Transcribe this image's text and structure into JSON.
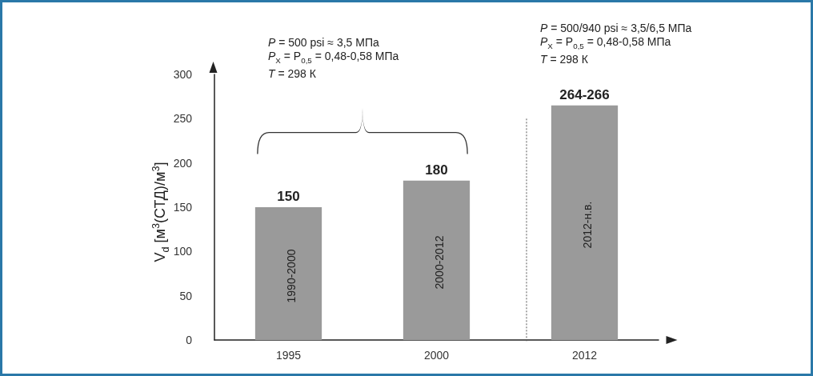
{
  "chart_data": {
    "type": "bar",
    "ylabel": "V$_{d}$ [м$^{3}$(СТД)/м$^{3}$]",
    "categories": [
      "1995",
      "2000",
      "2012"
    ],
    "values": [
      150,
      180,
      265
    ],
    "value_labels": [
      "150",
      "180",
      "264-266"
    ],
    "color": "#9a9a9a",
    "ylim": [
      0,
      300
    ],
    "yticks": [
      0,
      50,
      100,
      150,
      200,
      250,
      300
    ],
    "grid": false,
    "annotations": [
      "P = 500 psi ≈ 3,5 МПа\nP$_{X}$ = P$_{0,5}$ = 0,48-0,58 МПа\nT = 298 К",
      "P = 500/940 psi ≈ 3,5/6,5 МПа\nP$_{X}$ = P$_{0,5}$ = 0,48-0,58 МПа\nT = 298 К",
      "1990-2000",
      "2000-2012",
      "2012-н.в."
    ]
  }
}
